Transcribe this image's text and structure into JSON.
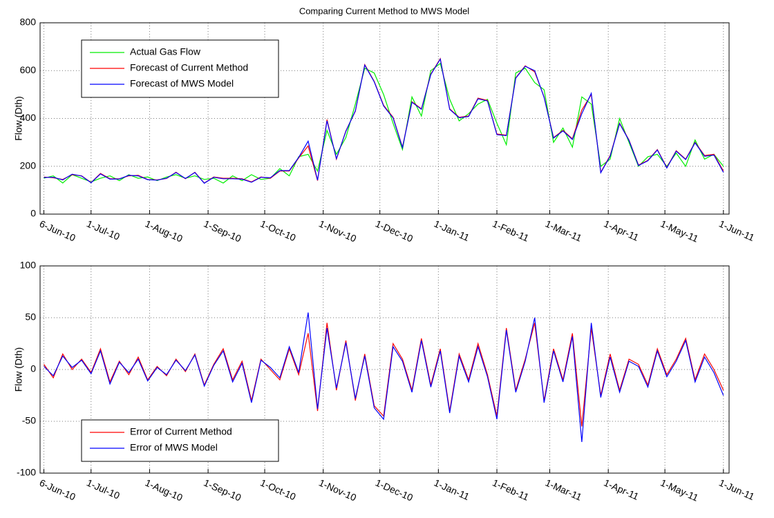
{
  "chart_data": [
    {
      "type": "line",
      "title": "Comparing Current Method to MWS Model",
      "ylabel": "Flow (Dth)",
      "x": [
        "2010-06-06",
        "2010-06-11",
        "2010-06-16",
        "2010-06-21",
        "2010-06-26",
        "2010-07-01",
        "2010-07-06",
        "2010-07-11",
        "2010-07-16",
        "2010-07-21",
        "2010-07-26",
        "2010-07-31",
        "2010-08-05",
        "2010-08-10",
        "2010-08-15",
        "2010-08-20",
        "2010-08-25",
        "2010-08-30",
        "2010-09-04",
        "2010-09-09",
        "2010-09-14",
        "2010-09-19",
        "2010-09-24",
        "2010-09-29",
        "2010-10-04",
        "2010-10-09",
        "2010-10-14",
        "2010-10-19",
        "2010-10-24",
        "2010-10-29",
        "2010-11-03",
        "2010-11-08",
        "2010-11-13",
        "2010-11-18",
        "2010-11-23",
        "2010-11-28",
        "2010-12-03",
        "2010-12-08",
        "2010-12-13",
        "2010-12-18",
        "2010-12-23",
        "2010-12-28",
        "2011-01-02",
        "2011-01-07",
        "2011-01-12",
        "2011-01-17",
        "2011-01-22",
        "2011-01-27",
        "2011-02-01",
        "2011-02-06",
        "2011-02-11",
        "2011-02-16",
        "2011-02-21",
        "2011-02-26",
        "2011-03-03",
        "2011-03-08",
        "2011-03-13",
        "2011-03-18",
        "2011-03-23",
        "2011-03-28",
        "2011-04-02",
        "2011-04-07",
        "2011-04-12",
        "2011-04-17",
        "2011-04-22",
        "2011-04-27",
        "2011-05-02",
        "2011-05-07",
        "2011-05-12",
        "2011-05-17",
        "2011-05-22",
        "2011-05-27",
        "2011-06-01"
      ],
      "series": [
        {
          "name": "Actual Gas Flow",
          "color": "#00ee00",
          "values": [
            150,
            160,
            130,
            165,
            150,
            135,
            150,
            160,
            140,
            165,
            150,
            155,
            140,
            155,
            165,
            150,
            160,
            145,
            150,
            130,
            160,
            140,
            165,
            145,
            150,
            190,
            160,
            240,
            250,
            180,
            350,
            250,
            320,
            460,
            610,
            590,
            500,
            380,
            270,
            490,
            410,
            600,
            630,
            480,
            390,
            420,
            460,
            480,
            380,
            290,
            590,
            610,
            550,
            520,
            300,
            360,
            280,
            490,
            460,
            200,
            230,
            400,
            300,
            200,
            240,
            250,
            200,
            255,
            200,
            310,
            230,
            250,
            200
          ]
        },
        {
          "name": "Forecast of Current Method",
          "color": "#ff0000",
          "values": [
            155,
            152,
            145,
            165,
            160,
            132,
            170,
            148,
            148,
            160,
            162,
            145,
            143,
            149,
            175,
            148,
            175,
            130,
            155,
            150,
            150,
            148,
            135,
            155,
            150,
            180,
            180,
            235,
            285,
            140,
            395,
            230,
            348,
            430,
            625,
            555,
            455,
            405,
            280,
            470,
            440,
            585,
            650,
            440,
            405,
            410,
            485,
            475,
            335,
            330,
            570,
            620,
            595,
            490,
            320,
            350,
            315,
            435,
            500,
            175,
            245,
            380,
            310,
            205,
            225,
            270,
            195,
            265,
            230,
            300,
            245,
            250,
            180
          ]
        },
        {
          "name": "Forecast of MWS Model",
          "color": "#0000ff",
          "values": [
            153,
            154,
            143,
            167,
            159,
            131,
            168,
            146,
            147,
            162,
            160,
            144,
            142,
            150,
            174,
            149,
            174,
            129,
            154,
            148,
            148,
            146,
            133,
            154,
            152,
            182,
            182,
            237,
            305,
            142,
            390,
            232,
            346,
            432,
            623,
            553,
            452,
            402,
            278,
            468,
            438,
            583,
            648,
            438,
            403,
            408,
            482,
            473,
            332,
            328,
            568,
            618,
            600,
            488,
            318,
            348,
            312,
            420,
            505,
            173,
            242,
            378,
            308,
            203,
            223,
            268,
            193,
            263,
            228,
            298,
            242,
            247,
            175
          ]
        }
      ],
      "xlim": [
        "2010-06-04",
        "2011-06-04"
      ],
      "xticks": [
        {
          "value": "2010-06-06",
          "label": "6-Jun-10"
        },
        {
          "value": "2010-07-01",
          "label": "1-Jul-10"
        },
        {
          "value": "2010-08-01",
          "label": "1-Aug-10"
        },
        {
          "value": "2010-09-01",
          "label": "1-Sep-10"
        },
        {
          "value": "2010-10-01",
          "label": "1-Oct-10"
        },
        {
          "value": "2010-11-01",
          "label": "1-Nov-10"
        },
        {
          "value": "2010-12-01",
          "label": "1-Dec-10"
        },
        {
          "value": "2011-01-01",
          "label": "1-Jan-11"
        },
        {
          "value": "2011-02-01",
          "label": "1-Feb-11"
        },
        {
          "value": "2011-03-01",
          "label": "1-Mar-11"
        },
        {
          "value": "2011-04-01",
          "label": "1-Apr-11"
        },
        {
          "value": "2011-05-01",
          "label": "1-May-11"
        },
        {
          "value": "2011-06-01",
          "label": "1-Jun-11"
        }
      ],
      "ylim": [
        0,
        800
      ],
      "yticks": [
        0,
        200,
        400,
        600,
        800
      ],
      "grid": true,
      "legend_loc": "upper left"
    },
    {
      "type": "line",
      "ylabel": "Flow (Dth)",
      "x": [
        "2010-06-06",
        "2010-06-11",
        "2010-06-16",
        "2010-06-21",
        "2010-06-26",
        "2010-07-01",
        "2010-07-06",
        "2010-07-11",
        "2010-07-16",
        "2010-07-21",
        "2010-07-26",
        "2010-07-31",
        "2010-08-05",
        "2010-08-10",
        "2010-08-15",
        "2010-08-20",
        "2010-08-25",
        "2010-08-30",
        "2010-09-04",
        "2010-09-09",
        "2010-09-14",
        "2010-09-19",
        "2010-09-24",
        "2010-09-29",
        "2010-10-04",
        "2010-10-09",
        "2010-10-14",
        "2010-10-19",
        "2010-10-24",
        "2010-10-29",
        "2010-11-03",
        "2010-11-08",
        "2010-11-13",
        "2010-11-18",
        "2010-11-23",
        "2010-11-28",
        "2010-12-03",
        "2010-12-08",
        "2010-12-13",
        "2010-12-18",
        "2010-12-23",
        "2010-12-28",
        "2011-01-02",
        "2011-01-07",
        "2011-01-12",
        "2011-01-17",
        "2011-01-22",
        "2011-01-27",
        "2011-02-01",
        "2011-02-06",
        "2011-02-11",
        "2011-02-16",
        "2011-02-21",
        "2011-02-26",
        "2011-03-03",
        "2011-03-08",
        "2011-03-13",
        "2011-03-18",
        "2011-03-23",
        "2011-03-28",
        "2011-04-02",
        "2011-04-07",
        "2011-04-12",
        "2011-04-17",
        "2011-04-22",
        "2011-04-27",
        "2011-05-02",
        "2011-05-07",
        "2011-05-12",
        "2011-05-17",
        "2011-05-22",
        "2011-05-27",
        "2011-06-01"
      ],
      "series": [
        {
          "name": "Error of Current Method",
          "color": "#ff0000",
          "values": [
            5,
            -8,
            15,
            0,
            10,
            -3,
            20,
            -12,
            8,
            -5,
            12,
            -10,
            3,
            -6,
            10,
            -2,
            15,
            -15,
            5,
            20,
            -10,
            8,
            -30,
            10,
            0,
            -10,
            20,
            -5,
            35,
            -40,
            45,
            -20,
            28,
            -30,
            15,
            -35,
            -45,
            25,
            10,
            -20,
            30,
            -15,
            20,
            -40,
            15,
            -10,
            25,
            -5,
            -45,
            40,
            -20,
            10,
            45,
            -30,
            20,
            -10,
            35,
            -55,
            40,
            -25,
            15,
            -20,
            10,
            5,
            -15,
            20,
            -5,
            10,
            30,
            -10,
            15,
            0,
            -20
          ]
        },
        {
          "name": "Error of MWS Model",
          "color": "#0000ff",
          "values": [
            3,
            -6,
            13,
            2,
            9,
            -4,
            18,
            -14,
            7,
            -3,
            10,
            -11,
            2,
            -5,
            9,
            -1,
            14,
            -16,
            4,
            18,
            -12,
            6,
            -32,
            9,
            2,
            -8,
            22,
            -3,
            55,
            -38,
            40,
            -18,
            26,
            -28,
            13,
            -37,
            -48,
            22,
            8,
            -22,
            28,
            -17,
            18,
            -42,
            13,
            -12,
            22,
            -7,
            -48,
            38,
            -22,
            8,
            50,
            -32,
            18,
            -12,
            32,
            -70,
            45,
            -27,
            12,
            -22,
            8,
            3,
            -17,
            18,
            -7,
            8,
            28,
            -12,
            12,
            -3,
            -25
          ]
        }
      ],
      "xlim": [
        "2010-06-04",
        "2011-06-04"
      ],
      "xticks": [
        {
          "value": "2010-06-06",
          "label": "6-Jun-10"
        },
        {
          "value": "2010-07-01",
          "label": "1-Jul-10"
        },
        {
          "value": "2010-08-01",
          "label": "1-Aug-10"
        },
        {
          "value": "2010-09-01",
          "label": "1-Sep-10"
        },
        {
          "value": "2010-10-01",
          "label": "1-Oct-10"
        },
        {
          "value": "2010-11-01",
          "label": "1-Nov-10"
        },
        {
          "value": "2010-12-01",
          "label": "1-Dec-10"
        },
        {
          "value": "2011-01-01",
          "label": "1-Jan-11"
        },
        {
          "value": "2011-02-01",
          "label": "1-Feb-11"
        },
        {
          "value": "2011-03-01",
          "label": "1-Mar-11"
        },
        {
          "value": "2011-04-01",
          "label": "1-Apr-11"
        },
        {
          "value": "2011-05-01",
          "label": "1-May-11"
        },
        {
          "value": "2011-06-01",
          "label": "1-Jun-11"
        }
      ],
      "ylim": [
        -100,
        100
      ],
      "yticks": [
        -100,
        -50,
        0,
        50,
        100
      ],
      "grid": true,
      "legend_loc": "lower left"
    }
  ]
}
